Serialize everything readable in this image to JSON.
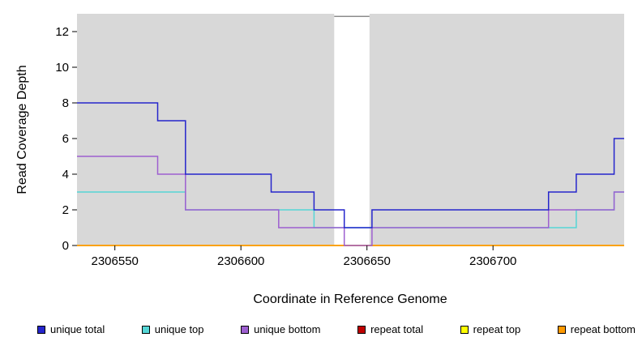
{
  "chart_data": {
    "type": "line",
    "subtype": "step-coverage",
    "title": "",
    "xlabel": "Coordinate in Reference Genome",
    "ylabel": "Read Coverage Depth",
    "xlim": [
      2306535,
      2306752
    ],
    "ylim": [
      0,
      13
    ],
    "x_ticks": [
      2306550,
      2306600,
      2306650,
      2306700
    ],
    "y_ticks": [
      0,
      2,
      4,
      6,
      8,
      10,
      12
    ],
    "grid": false,
    "panel_background": "#d8d8d8",
    "masked_region": {
      "x1": 2306637,
      "x2": 2306651,
      "color": "#ffffff",
      "top_line_value": 12.85,
      "top_line_color": "#8c8c8c"
    },
    "series": [
      {
        "name": "repeat total",
        "color": "#c00000",
        "steps": [
          [
            2306535,
            0
          ]
        ],
        "x_end": 2306752
      },
      {
        "name": "repeat top",
        "color": "#ffff00",
        "steps": [
          [
            2306535,
            0
          ]
        ],
        "x_end": 2306752
      },
      {
        "name": "repeat bottom",
        "color": "#ff9a00",
        "steps": [
          [
            2306535,
            0
          ]
        ],
        "x_end": 2306752
      },
      {
        "name": "unique top",
        "color": "#55d6d6",
        "steps": [
          [
            2306535,
            3
          ],
          [
            2306578,
            2
          ],
          [
            2306629,
            1
          ],
          [
            2306733,
            2
          ],
          [
            2306748,
            3
          ]
        ],
        "x_end": 2306752
      },
      {
        "name": "unique bottom",
        "color": "#9d5fd0",
        "steps": [
          [
            2306535,
            5
          ],
          [
            2306567,
            4
          ],
          [
            2306578,
            2
          ],
          [
            2306615,
            1
          ],
          [
            2306641,
            0
          ],
          [
            2306652,
            1
          ],
          [
            2306722,
            2
          ],
          [
            2306748,
            3
          ]
        ],
        "x_end": 2306752
      },
      {
        "name": "unique total",
        "color": "#2525cc",
        "steps": [
          [
            2306535,
            8
          ],
          [
            2306567,
            7
          ],
          [
            2306578,
            4
          ],
          [
            2306612,
            3
          ],
          [
            2306629,
            2
          ],
          [
            2306641,
            1
          ],
          [
            2306652,
            2
          ],
          [
            2306722,
            3
          ],
          [
            2306733,
            4
          ],
          [
            2306748,
            6
          ]
        ],
        "x_end": 2306752
      }
    ],
    "legend": {
      "position": "bottom",
      "items": [
        {
          "label": "unique total",
          "color": "#2525cc"
        },
        {
          "label": "unique top",
          "color": "#55d6d6"
        },
        {
          "label": "unique bottom",
          "color": "#9d5fd0"
        },
        {
          "label": "repeat total",
          "color": "#c00000"
        },
        {
          "label": "repeat top",
          "color": "#ffff00"
        },
        {
          "label": "repeat bottom",
          "color": "#ff9a00"
        }
      ]
    }
  }
}
